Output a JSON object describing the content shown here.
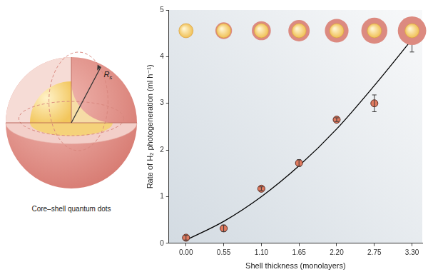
{
  "chart_data": {
    "type": "scatter",
    "xlabel": "Shell thickness (monolayers)",
    "ylabel": "Rate of H₂ photogeneration (ml h⁻¹)",
    "x": [
      0,
      0.55,
      1.1,
      1.65,
      2.2,
      2.75,
      3.3
    ],
    "series": [
      {
        "type": "scatter",
        "color": "#e07a5f",
        "marker": "circle",
        "values": [
          0.12,
          0.32,
          1.17,
          1.72,
          2.65,
          3.0,
          4.37
        ],
        "errors": [
          0.05,
          0.07,
          0.04,
          0.07,
          0.04,
          0.18,
          0.27
        ]
      },
      {
        "type": "line",
        "color": "#000000",
        "line_style": "solid",
        "values": [
          0.07,
          0.47,
          1.0,
          1.66,
          2.45,
          3.38,
          4.37
        ]
      }
    ],
    "xlim": [
      -0.25,
      3.45
    ],
    "xticks": [
      {
        "value": 0,
        "label": "0.00"
      },
      {
        "value": 0.55,
        "label": "0.55"
      },
      {
        "value": 1.1,
        "label": "1.10"
      },
      {
        "value": 1.65,
        "label": "1.65"
      },
      {
        "value": 2.2,
        "label": "2.20"
      },
      {
        "value": 2.75,
        "label": "2.75"
      },
      {
        "value": 3.3,
        "label": "3.30"
      }
    ],
    "ylim": [
      0,
      5
    ],
    "yticks": [
      0,
      1,
      2,
      3,
      4,
      5
    ],
    "grid": false
  },
  "diagram": {
    "caption": "Core–shell quantum dots",
    "radius_label": "R",
    "radius_subscript": "s"
  }
}
